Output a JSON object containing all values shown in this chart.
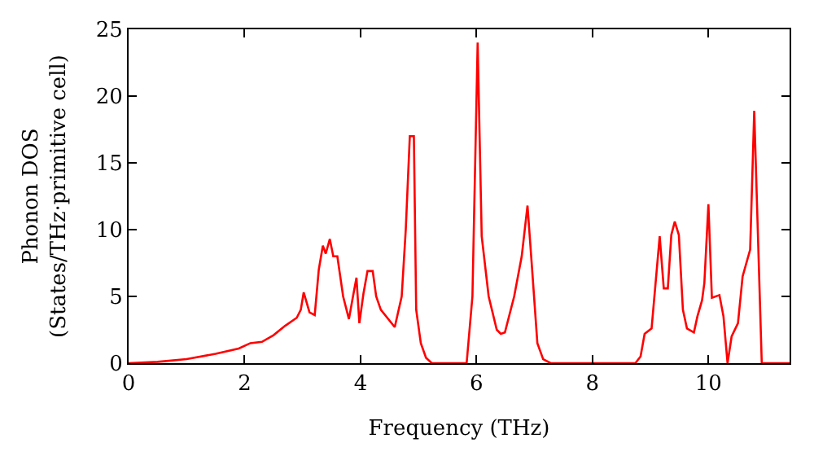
{
  "chart_data": {
    "type": "line",
    "xlabel": "Frequency (THz)",
    "ylabel": "Phonon DOS\n(States/THz·primitive cell)",
    "xlim": [
      0,
      11.4
    ],
    "ylim": [
      0,
      25
    ],
    "xticks": [
      0,
      2,
      4,
      6,
      8,
      10
    ],
    "yticks": [
      0,
      5,
      10,
      15,
      20,
      25
    ],
    "series": [
      {
        "color": "#ff0000",
        "x": [
          0,
          0.5,
          1,
          1.5,
          1.9,
          2.1,
          2.3,
          2.5,
          2.7,
          2.9,
          2.97,
          3.02,
          3.12,
          3.21,
          3.28,
          3.35,
          3.4,
          3.47,
          3.53,
          3.6,
          3.7,
          3.8,
          3.87,
          3.93,
          3.98,
          4.05,
          4.12,
          4.21,
          4.27,
          4.35,
          4.59,
          4.71,
          4.78,
          4.85,
          4.92,
          4.96,
          5.04,
          5.13,
          5.23,
          5.83,
          5.93,
          6.02,
          6.09,
          6.21,
          6.35,
          6.42,
          6.49,
          6.65,
          6.78,
          6.88,
          6.96,
          7.05,
          7.15,
          7.28,
          8.74,
          8.83,
          8.9,
          9.02,
          9.16,
          9.23,
          9.3,
          9.36,
          9.42,
          9.49,
          9.56,
          9.63,
          9.75,
          9.81,
          9.89,
          9.93,
          10.0,
          10.06,
          10.19,
          10.26,
          10.33,
          10.4,
          10.51,
          10.59,
          10.72,
          10.79,
          10.92,
          11.4
        ],
        "values": [
          0,
          0.1,
          0.3,
          0.7,
          1.1,
          1.5,
          1.6,
          2.1,
          2.8,
          3.4,
          4.0,
          5.3,
          3.8,
          3.6,
          7.0,
          8.8,
          8.2,
          9.3,
          8.0,
          8.0,
          5.0,
          3.3,
          5.0,
          6.4,
          3.0,
          5.2,
          6.9,
          6.9,
          5.0,
          4.0,
          2.7,
          5.0,
          10,
          17,
          17,
          4,
          1.5,
          0.4,
          0,
          0,
          5,
          24,
          9.5,
          5,
          2.5,
          2.2,
          2.3,
          5,
          8,
          11.8,
          7,
          1.5,
          0.3,
          0,
          0,
          0.5,
          2.2,
          2.6,
          9.5,
          5.6,
          5.6,
          9.6,
          10.6,
          9.6,
          4,
          2.6,
          2.3,
          3.5,
          4.7,
          6,
          11.9,
          4.9,
          5.1,
          3.5,
          0,
          2,
          3,
          6.5,
          8.5,
          18.9,
          0,
          0
        ]
      }
    ]
  }
}
